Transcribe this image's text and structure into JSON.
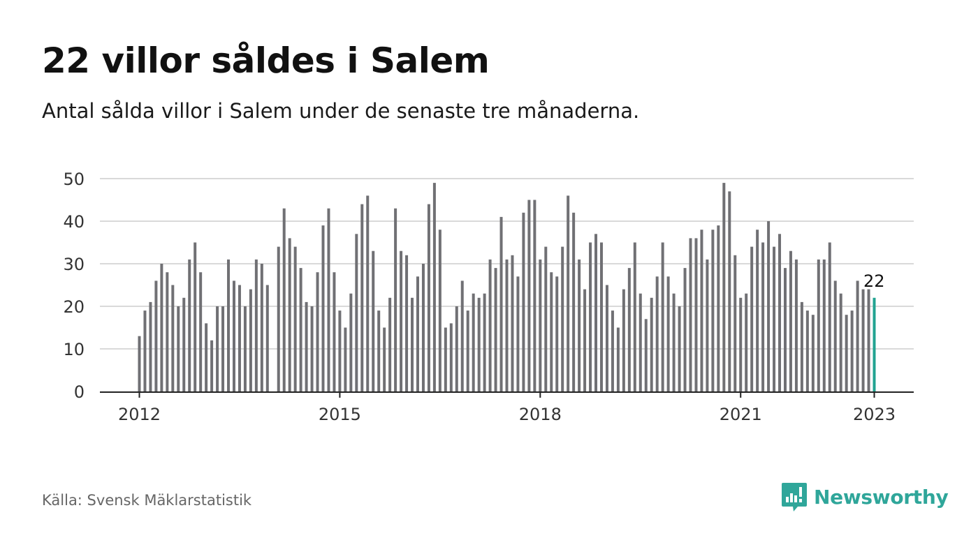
{
  "title": "22 villor såldes i Salem",
  "subtitle": "Antal sålda villor i Salem under de senaste tre månaderna.",
  "source": "Källa: Svensk Mäklarstatistik",
  "brand": "Newsworthy",
  "colors": {
    "bar": "#707074",
    "highlight": "#22a391",
    "grid": "#d9d9d9",
    "axis": "#222222",
    "brand": "#2fa69a"
  },
  "chart_data": {
    "type": "bar",
    "ylim": [
      0,
      50
    ],
    "yticks": [
      0,
      10,
      20,
      30,
      40,
      50
    ],
    "xticks": [
      {
        "label": "2012",
        "index": 0
      },
      {
        "label": "2015",
        "index": 36
      },
      {
        "label": "2018",
        "index": 72
      },
      {
        "label": "2021",
        "index": 108
      },
      {
        "label": "2023",
        "index": 132
      }
    ],
    "period": {
      "start": "2012-01",
      "end": "2023-01",
      "frequency": "monthly"
    },
    "values": [
      13,
      19,
      21,
      26,
      30,
      28,
      25,
      20,
      22,
      31,
      35,
      28,
      16,
      12,
      20,
      20,
      31,
      26,
      25,
      20,
      24,
      31,
      30,
      25,
      null,
      34,
      43,
      36,
      34,
      29,
      21,
      20,
      28,
      39,
      43,
      28,
      19,
      15,
      23,
      37,
      44,
      46,
      33,
      19,
      15,
      22,
      43,
      33,
      32,
      22,
      27,
      30,
      44,
      49,
      38,
      15,
      16,
      20,
      26,
      19,
      23,
      22,
      23,
      31,
      29,
      41,
      31,
      32,
      27,
      42,
      45,
      45,
      31,
      34,
      28,
      27,
      34,
      46,
      42,
      31,
      24,
      35,
      37,
      35,
      25,
      19,
      15,
      24,
      29,
      35,
      23,
      17,
      22,
      27,
      35,
      27,
      23,
      20,
      29,
      36,
      36,
      38,
      31,
      38,
      39,
      49,
      47,
      32,
      22,
      23,
      34,
      38,
      35,
      40,
      34,
      37,
      29,
      33,
      31,
      21,
      19,
      18,
      31,
      31,
      35,
      26,
      23,
      18,
      19,
      26,
      24,
      24,
      22
    ],
    "highlight_last": true,
    "last_value_label": "22"
  }
}
